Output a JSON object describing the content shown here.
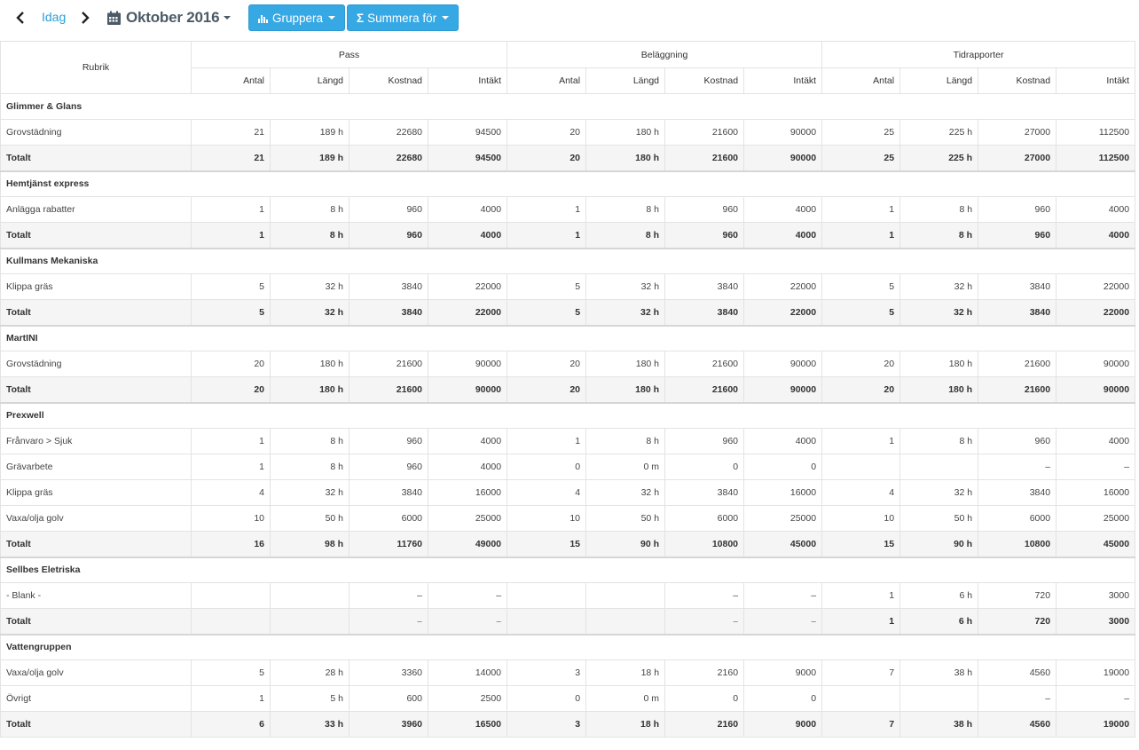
{
  "toolbar": {
    "today": "Idag",
    "month": "Oktober 2016",
    "group_button": "Gruppera",
    "sum_button": "Summera för",
    "icons": [
      "chevron-left-icon",
      "chevron-right-icon",
      "calendar-icon",
      "bar-chart-icon",
      "sigma-icon"
    ],
    "accent": "#36a8e4"
  },
  "table": {
    "rubrik": "Rubrik",
    "sections": [
      "Pass",
      "Beläggning",
      "Tidrapporter"
    ],
    "subcolumns": [
      "Antal",
      "Längd",
      "Kostnad",
      "Intäkt"
    ],
    "groups": [
      {
        "name": "Glimmer & Glans",
        "rows": [
          {
            "label": "Grovstädning",
            "cells": [
              "21",
              "189 h",
              "22680",
              "94500",
              "20",
              "180 h",
              "21600",
              "90000",
              "25",
              "225 h",
              "27000",
              "112500"
            ]
          }
        ],
        "total": {
          "label": "Totalt",
          "cells": [
            "21",
            "189 h",
            "22680",
            "94500",
            "20",
            "180 h",
            "21600",
            "90000",
            "25",
            "225 h",
            "27000",
            "112500"
          ]
        }
      },
      {
        "name": "Hemtjänst express",
        "rows": [
          {
            "label": "Anlägga rabatter",
            "cells": [
              "1",
              "8 h",
              "960",
              "4000",
              "1",
              "8 h",
              "960",
              "4000",
              "1",
              "8 h",
              "960",
              "4000"
            ]
          }
        ],
        "total": {
          "label": "Totalt",
          "cells": [
            "1",
            "8 h",
            "960",
            "4000",
            "1",
            "8 h",
            "960",
            "4000",
            "1",
            "8 h",
            "960",
            "4000"
          ]
        }
      },
      {
        "name": "Kullmans Mekaniska",
        "rows": [
          {
            "label": "Klippa gräs",
            "cells": [
              "5",
              "32 h",
              "3840",
              "22000",
              "5",
              "32 h",
              "3840",
              "22000",
              "5",
              "32 h",
              "3840",
              "22000"
            ]
          }
        ],
        "total": {
          "label": "Totalt",
          "cells": [
            "5",
            "32 h",
            "3840",
            "22000",
            "5",
            "32 h",
            "3840",
            "22000",
            "5",
            "32 h",
            "3840",
            "22000"
          ]
        }
      },
      {
        "name": "MartINI",
        "rows": [
          {
            "label": "Grovstädning",
            "cells": [
              "20",
              "180 h",
              "21600",
              "90000",
              "20",
              "180 h",
              "21600",
              "90000",
              "20",
              "180 h",
              "21600",
              "90000"
            ]
          }
        ],
        "total": {
          "label": "Totalt",
          "cells": [
            "20",
            "180 h",
            "21600",
            "90000",
            "20",
            "180 h",
            "21600",
            "90000",
            "20",
            "180 h",
            "21600",
            "90000"
          ]
        }
      },
      {
        "name": "Prexwell",
        "rows": [
          {
            "label": "Frånvaro > Sjuk",
            "cells": [
              "1",
              "8 h",
              "960",
              "4000",
              "1",
              "8 h",
              "960",
              "4000",
              "1",
              "8 h",
              "960",
              "4000"
            ]
          },
          {
            "label": "Grävarbete",
            "cells": [
              "1",
              "8 h",
              "960",
              "4000",
              "0",
              "0 m",
              "0",
              "0",
              "",
              "",
              "–",
              "–"
            ]
          },
          {
            "label": "Klippa gräs",
            "cells": [
              "4",
              "32 h",
              "3840",
              "16000",
              "4",
              "32 h",
              "3840",
              "16000",
              "4",
              "32 h",
              "3840",
              "16000"
            ]
          },
          {
            "label": "Vaxa/olja golv",
            "cells": [
              "10",
              "50 h",
              "6000",
              "25000",
              "10",
              "50 h",
              "6000",
              "25000",
              "10",
              "50 h",
              "6000",
              "25000"
            ]
          }
        ],
        "total": {
          "label": "Totalt",
          "cells": [
            "16",
            "98 h",
            "11760",
            "49000",
            "15",
            "90 h",
            "10800",
            "45000",
            "15",
            "90 h",
            "10800",
            "45000"
          ]
        }
      },
      {
        "name": "Sellbes Eletriska",
        "rows": [
          {
            "label": "- Blank -",
            "cells": [
              "",
              "",
              "–",
              "–",
              "",
              "",
              "–",
              "–",
              "1",
              "6 h",
              "720",
              "3000"
            ]
          }
        ],
        "total": {
          "label": "Totalt",
          "cells": [
            "",
            "",
            "–",
            "–",
            "",
            "",
            "–",
            "–",
            "1",
            "6 h",
            "720",
            "3000"
          ]
        }
      },
      {
        "name": "Vattengruppen",
        "rows": [
          {
            "label": "Vaxa/olja golv",
            "cells": [
              "5",
              "28 h",
              "3360",
              "14000",
              "3",
              "18 h",
              "2160",
              "9000",
              "7",
              "38 h",
              "4560",
              "19000"
            ]
          },
          {
            "label": "Övrigt",
            "cells": [
              "1",
              "5 h",
              "600",
              "2500",
              "0",
              "0 m",
              "0",
              "0",
              "",
              "",
              "–",
              "–"
            ]
          }
        ],
        "total": {
          "label": "Totalt",
          "cells": [
            "6",
            "33 h",
            "3960",
            "16500",
            "3",
            "18 h",
            "2160",
            "9000",
            "7",
            "38 h",
            "4560",
            "19000"
          ]
        }
      }
    ]
  }
}
